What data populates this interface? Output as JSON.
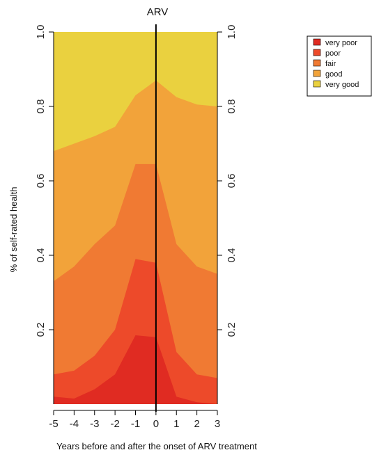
{
  "chart_data": {
    "type": "area",
    "stacked": true,
    "title": "ARV",
    "xlabel": "Years before and after the onset of ARV treatment",
    "ylabel": "% of self-rated health",
    "x": [
      -5,
      -4,
      -3,
      -2,
      -1,
      0,
      1,
      2,
      3
    ],
    "x_ticks": [
      "-5",
      "-4",
      "-3",
      "-2",
      "-1",
      "0",
      "1",
      "2",
      "3"
    ],
    "y_ticks": [
      "0.2",
      "0.4",
      "0.6",
      "0.8",
      "1.0"
    ],
    "y_tick_values": [
      0.2,
      0.4,
      0.6,
      0.8,
      1.0
    ],
    "xlim": [
      -5,
      3
    ],
    "ylim": [
      0,
      1
    ],
    "vertical_line": {
      "x": 0,
      "label": "ARV"
    },
    "cumulative_boundaries": {
      "very poor": [
        0.02,
        0.015,
        0.04,
        0.08,
        0.185,
        0.18,
        0.02,
        0.005,
        0.0
      ],
      "poor": [
        0.08,
        0.09,
        0.13,
        0.2,
        0.39,
        0.38,
        0.14,
        0.08,
        0.07
      ],
      "fair": [
        0.33,
        0.37,
        0.43,
        0.48,
        0.645,
        0.645,
        0.43,
        0.37,
        0.35
      ],
      "good": [
        0.68,
        0.7,
        0.72,
        0.745,
        0.83,
        0.87,
        0.825,
        0.805,
        0.8
      ],
      "very good": [
        1.0,
        1.0,
        1.0,
        1.0,
        1.0,
        1.0,
        1.0,
        1.0,
        1.0
      ]
    },
    "series": [
      {
        "name": "very poor",
        "color": "#e02b22"
      },
      {
        "name": "poor",
        "color": "#ed4a2a"
      },
      {
        "name": "fair",
        "color": "#f07a33"
      },
      {
        "name": "good",
        "color": "#f2a33a"
      },
      {
        "name": "very good",
        "color": "#ead13f"
      }
    ],
    "legend": {
      "position": "top-right",
      "items": [
        "very poor",
        "poor",
        "fair",
        "good",
        "very good"
      ]
    },
    "grid": false
  }
}
